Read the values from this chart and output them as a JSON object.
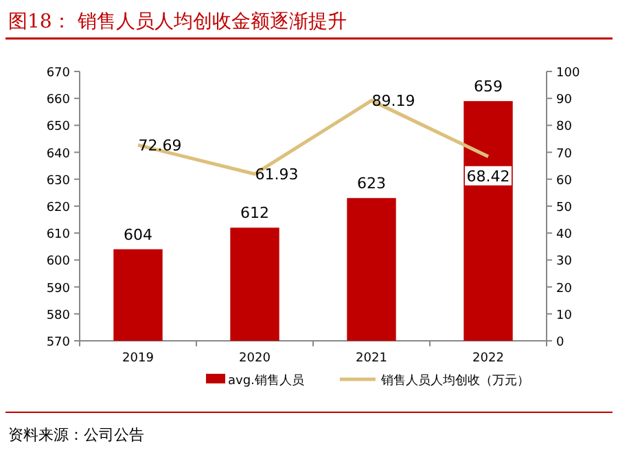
{
  "chart_data": {
    "type": "bar",
    "title": "图18：  销售人员人均创收金额逐渐提升",
    "categories": [
      "2019",
      "2020",
      "2021",
      "2022"
    ],
    "series": [
      {
        "name": "avg.销售人员",
        "color": "#c00000",
        "values": [
          604,
          612,
          623,
          659
        ]
      },
      {
        "name": "销售人员人均创收（万元）",
        "type": "line",
        "axis": "y2",
        "color": "#dcc07c",
        "values": [
          72.69,
          61.93,
          89.19,
          68.42
        ]
      }
    ],
    "ylim": [
      570,
      670
    ],
    "yticks": [
      570,
      580,
      590,
      600,
      610,
      620,
      630,
      640,
      650,
      660,
      670
    ],
    "y2lim": [
      0,
      100
    ],
    "y2ticks": [
      0,
      10,
      20,
      30,
      40,
      50,
      60,
      70,
      80,
      90,
      100
    ],
    "data_labels": true,
    "legend": "bottom",
    "grid": false,
    "annotations": [
      "资料来源：公司公告"
    ]
  }
}
